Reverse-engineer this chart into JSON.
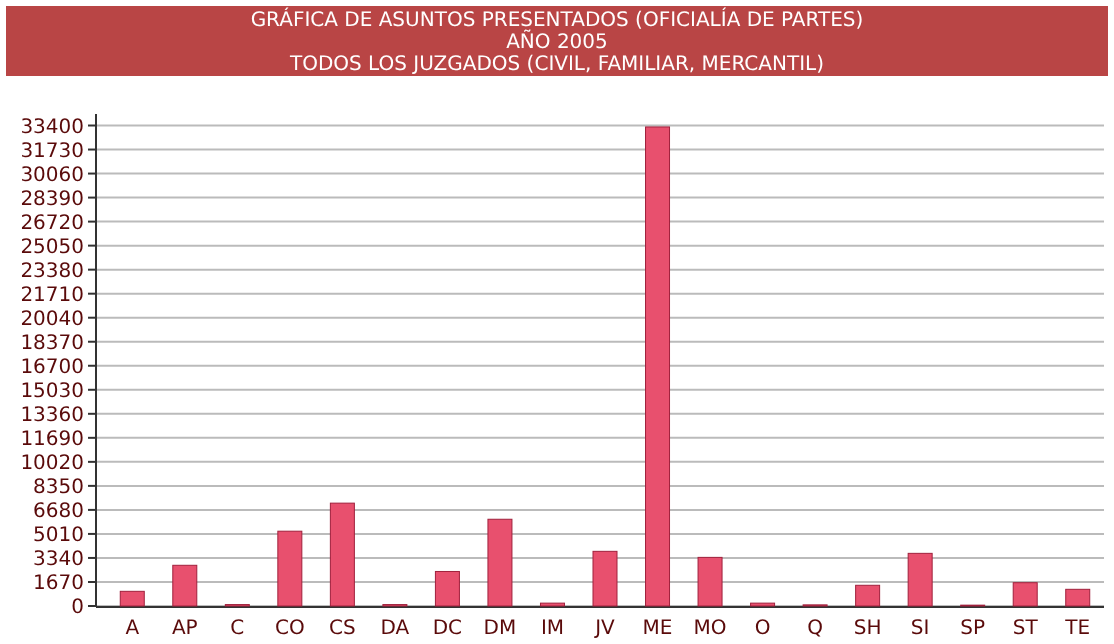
{
  "chart_data": {
    "type": "bar",
    "title": "GRÁFICA DE ASUNTOS PRESENTADOS (OFICIALÍA DE PARTES)",
    "subtitle": "AÑO 2005",
    "annotations": [
      "TODOS LOS JUZGADOS (CIVIL, FAMILIAR, MERCANTIL)"
    ],
    "categories": [
      "A",
      "AP",
      "C",
      "CO",
      "CS",
      "DA",
      "DC",
      "DM",
      "IM",
      "JV",
      "ME",
      "MO",
      "O",
      "Q",
      "SH",
      "SI",
      "SP",
      "ST",
      "TE"
    ],
    "values": [
      1020,
      2830,
      100,
      5200,
      7150,
      100,
      2400,
      6030,
      200,
      3800,
      33300,
      3380,
      200,
      80,
      1440,
      3660,
      60,
      1620,
      1160
    ],
    "color": "#e8506e",
    "ylim": [
      0,
      34200
    ],
    "yticks": [
      0,
      1670,
      3340,
      5010,
      6680,
      8350,
      10020,
      11690,
      13360,
      15030,
      16700,
      18370,
      20040,
      21710,
      23380,
      25050,
      26720,
      28390,
      30060,
      31730,
      33400
    ],
    "grid": "y"
  }
}
